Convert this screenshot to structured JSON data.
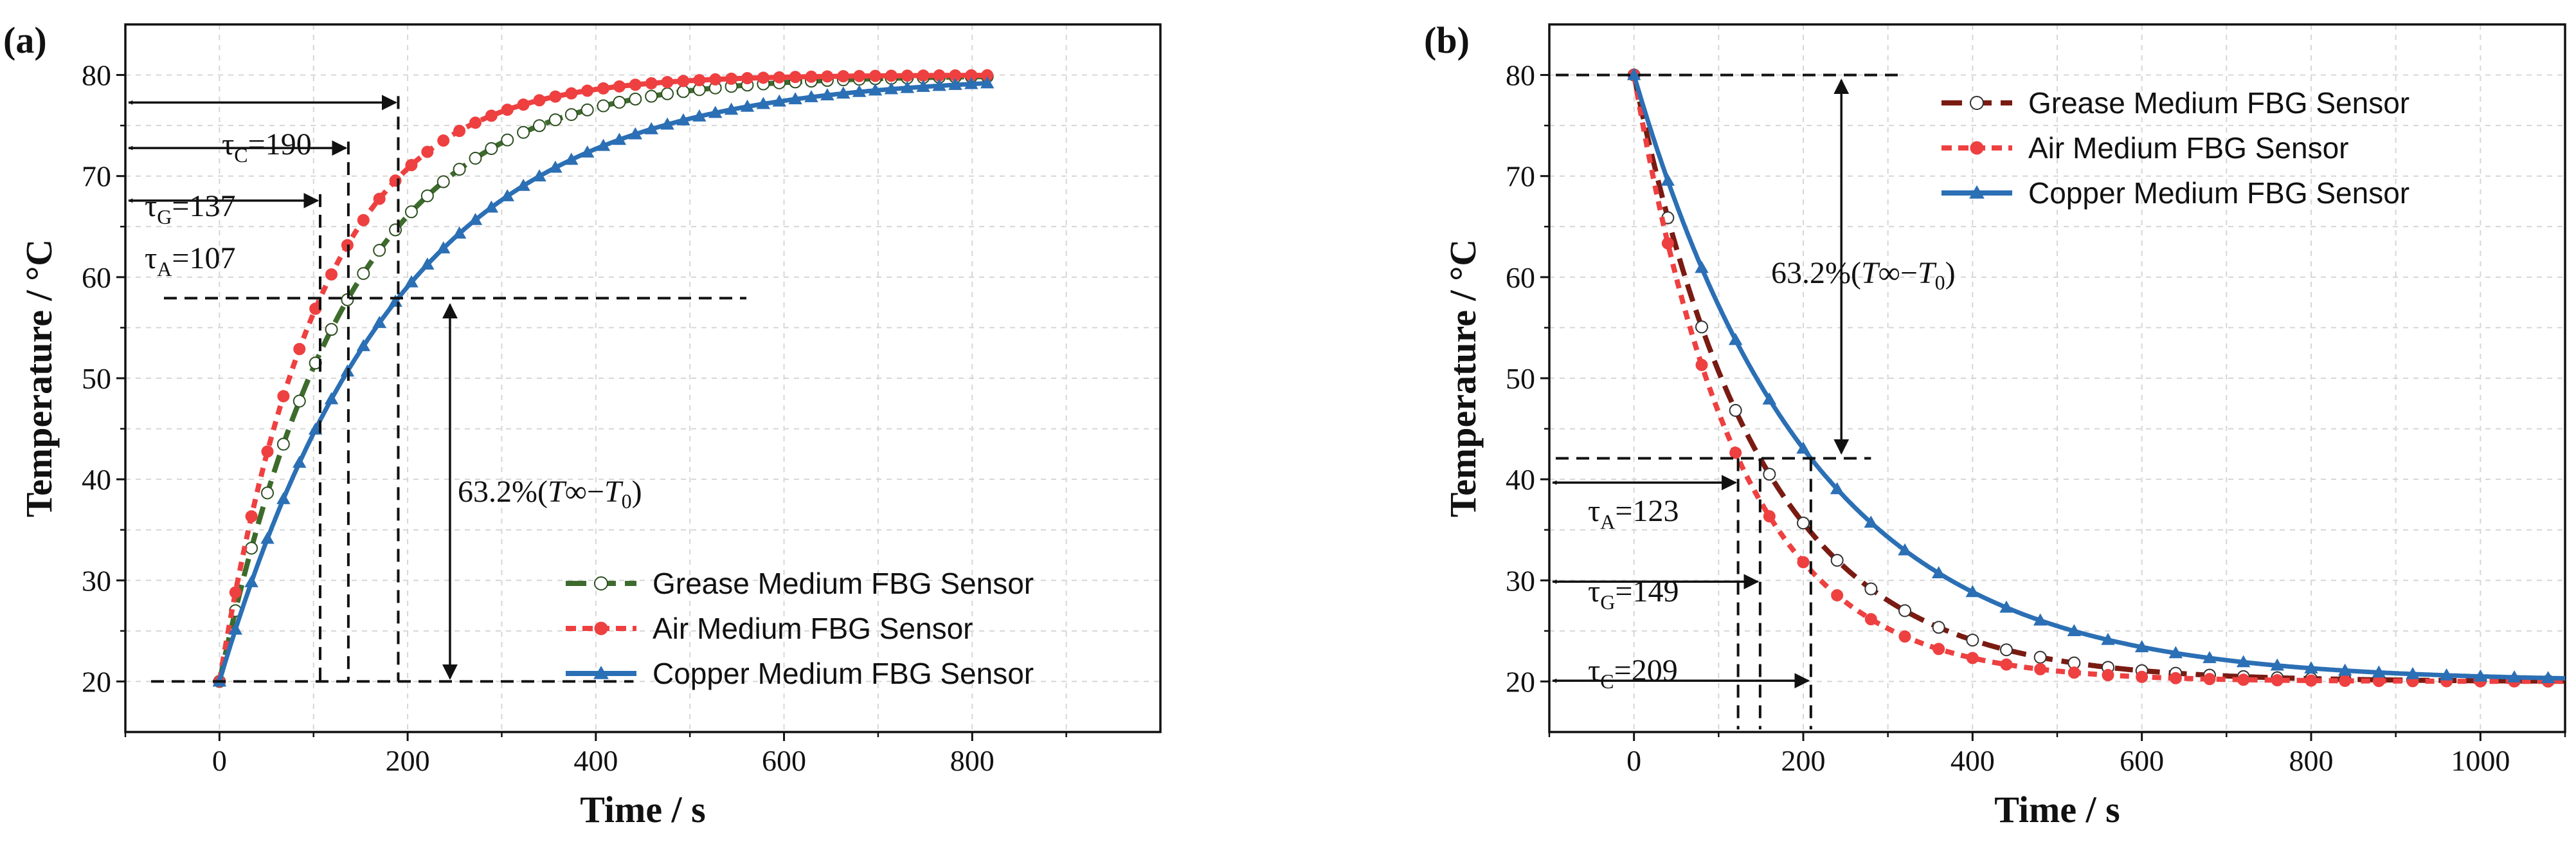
{
  "chart_data": [
    {
      "panel_label": "(a)",
      "type": "line",
      "title": "",
      "xlabel": "Time / s",
      "ylabel": "Temperature / °C",
      "xlim": [
        -100,
        1000
      ],
      "ylim": [
        15,
        85
      ],
      "x_ticks": [
        "0",
        "200",
        "400",
        "600",
        "800"
      ],
      "y_ticks": [
        "20",
        "30",
        "40",
        "50",
        "60",
        "70",
        "80"
      ],
      "grid": true,
      "legend_position": "bottom-right",
      "model": {
        "kind": "heating",
        "T0": 20,
        "Tinf": 80,
        "t_start": 0,
        "t_end": 820
      },
      "series": [
        {
          "name": "Grease Medium FBG Sensor",
          "color": "#3d6b2c",
          "line": "long-dash",
          "marker": "open-circle",
          "marker_fill": "#ffffff",
          "marker_stroke": "#2f4f22",
          "tau": 137,
          "marker_step": 17
        },
        {
          "name": "Air Medium FBG Sensor",
          "color": "#ee4040",
          "line": "dash",
          "marker": "filled-circle",
          "marker_fill": "#ee4040",
          "marker_stroke": "#ee4040",
          "tau": 107,
          "marker_step": 17
        },
        {
          "name": "Copper Medium FBG Sensor",
          "color": "#2b6fb5",
          "line": "solid",
          "marker": "filled-triangle",
          "marker_fill": "#2b6fb5",
          "marker_stroke": "#2b6fb5",
          "tau": 190,
          "marker_step": 17
        }
      ],
      "tau_labels": [
        {
          "sym": "τ",
          "sub": "C",
          "value": "=190"
        },
        {
          "sym": "τ",
          "sub": "G",
          "value": "=137"
        },
        {
          "sym": "τ",
          "sub": "A",
          "value": "=107"
        }
      ],
      "annotation": {
        "pre": "63.2%(",
        "t1": "T",
        "mid": "∞−",
        "t2": "T",
        "sub": "0",
        "post": ")"
      }
    },
    {
      "panel_label": "(b)",
      "type": "line",
      "title": "",
      "xlabel": "Time / s",
      "ylabel": "Temperature / °C",
      "xlim": [
        -100,
        1100
      ],
      "ylim": [
        15,
        85
      ],
      "x_ticks": [
        "0",
        "200",
        "400",
        "600",
        "800",
        "1000"
      ],
      "y_ticks": [
        "20",
        "30",
        "40",
        "50",
        "60",
        "70",
        "80"
      ],
      "grid": true,
      "legend_position": "top-right",
      "model": {
        "kind": "cooling",
        "T0": 80,
        "Tinf": 20,
        "t_start": 0,
        "t_end": 1100
      },
      "series": [
        {
          "name": "Grease Medium FBG Sensor",
          "color": "#7a1b12",
          "line": "long-dash",
          "marker": "open-circle",
          "marker_fill": "#ffffff",
          "marker_stroke": "#333333",
          "tau": 149,
          "marker_step": 40
        },
        {
          "name": "Air Medium FBG Sensor",
          "color": "#ee4040",
          "line": "dash",
          "marker": "filled-circle",
          "marker_fill": "#ee4040",
          "marker_stroke": "#ee4040",
          "tau": 123,
          "marker_step": 40
        },
        {
          "name": "Copper Medium FBG Sensor",
          "color": "#2b6fb5",
          "line": "solid",
          "marker": "filled-triangle",
          "marker_fill": "#2b6fb5",
          "marker_stroke": "#2b6fb5",
          "tau": 209,
          "marker_step": 40
        }
      ],
      "tau_labels": [
        {
          "sym": "τ",
          "sub": "A",
          "value": "=123"
        },
        {
          "sym": "τ",
          "sub": "G",
          "value": "=149"
        },
        {
          "sym": "τ",
          "sub": "C",
          "value": "=209"
        }
      ],
      "annotation": {
        "pre": "63.2%(",
        "t1": "T",
        "mid": "∞−",
        "t2": "T",
        "sub": "0",
        "post": ")"
      }
    }
  ]
}
